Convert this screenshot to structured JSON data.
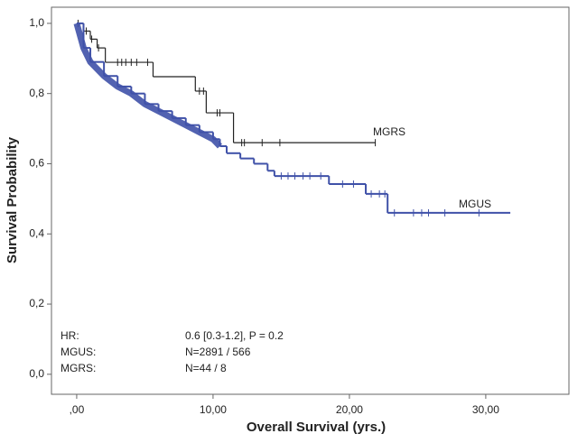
{
  "chart_data": {
    "type": "step",
    "x_label": "Overall Survival (yrs.)",
    "y_label": "Survival Probability",
    "xlim": [
      -1.85,
      36.1
    ],
    "ylim": [
      -0.057,
      1.046
    ],
    "xticks": [
      {
        "value": 0,
        "label": ",00"
      },
      {
        "value": 10,
        "label": "10,00"
      },
      {
        "value": 20,
        "label": "20,00"
      },
      {
        "value": 30,
        "label": "30,00"
      }
    ],
    "yticks": [
      {
        "value": 0,
        "label": "0,0"
      },
      {
        "value": 0.2,
        "label": "0,2"
      },
      {
        "value": 0.4,
        "label": "0,4"
      },
      {
        "value": 0.6,
        "label": "0,6"
      },
      {
        "value": 0.8,
        "label": "0,8"
      },
      {
        "value": 1,
        "label": "1,0"
      }
    ],
    "series": [
      {
        "name": "MGRS",
        "color": "#222222",
        "x": [
          0,
          0.5,
          1.0,
          1.5,
          2.1,
          5.6,
          8.7,
          9.5,
          11.5,
          21.9
        ],
        "values": [
          1.0,
          0.978,
          0.955,
          0.93,
          0.889,
          0.848,
          0.807,
          0.745,
          0.66,
          0.66
        ],
        "censored": [
          0.1,
          0.7,
          1.1,
          1.6,
          3.0,
          3.3,
          3.6,
          4.0,
          4.4,
          5.2,
          9.0,
          9.3,
          10.3,
          10.5,
          12.1,
          12.3,
          13.6,
          14.9,
          21.9
        ]
      },
      {
        "name": "MGUS",
        "color": "#3f51a8",
        "x": [
          0,
          0.5,
          1,
          2,
          3,
          4,
          5,
          6,
          7,
          8,
          9,
          10,
          10.5,
          11,
          12,
          13,
          14,
          14.5,
          18.5,
          21.2,
          22.8,
          31.8
        ],
        "values": [
          1.0,
          0.93,
          0.89,
          0.85,
          0.82,
          0.8,
          0.77,
          0.75,
          0.73,
          0.71,
          0.69,
          0.67,
          0.65,
          0.63,
          0.615,
          0.6,
          0.58,
          0.565,
          0.542,
          0.514,
          0.46,
          0.46
        ],
        "censored": [
          15.0,
          15.5,
          16.0,
          16.6,
          17.1,
          17.9,
          19.5,
          20.3,
          21.6,
          22.2,
          22.6,
          23.3,
          24.7,
          25.3,
          25.8,
          27.0,
          29.5
        ]
      }
    ],
    "annotations": [
      "MGRS",
      "MGUS"
    ],
    "stats": [
      [
        "HR:",
        "0.6 [0.3-1.2], P = 0.2"
      ],
      [
        "MGUS:",
        "N=2891 / 566"
      ],
      [
        "MGRS:",
        "N=44 / 8"
      ]
    ]
  }
}
